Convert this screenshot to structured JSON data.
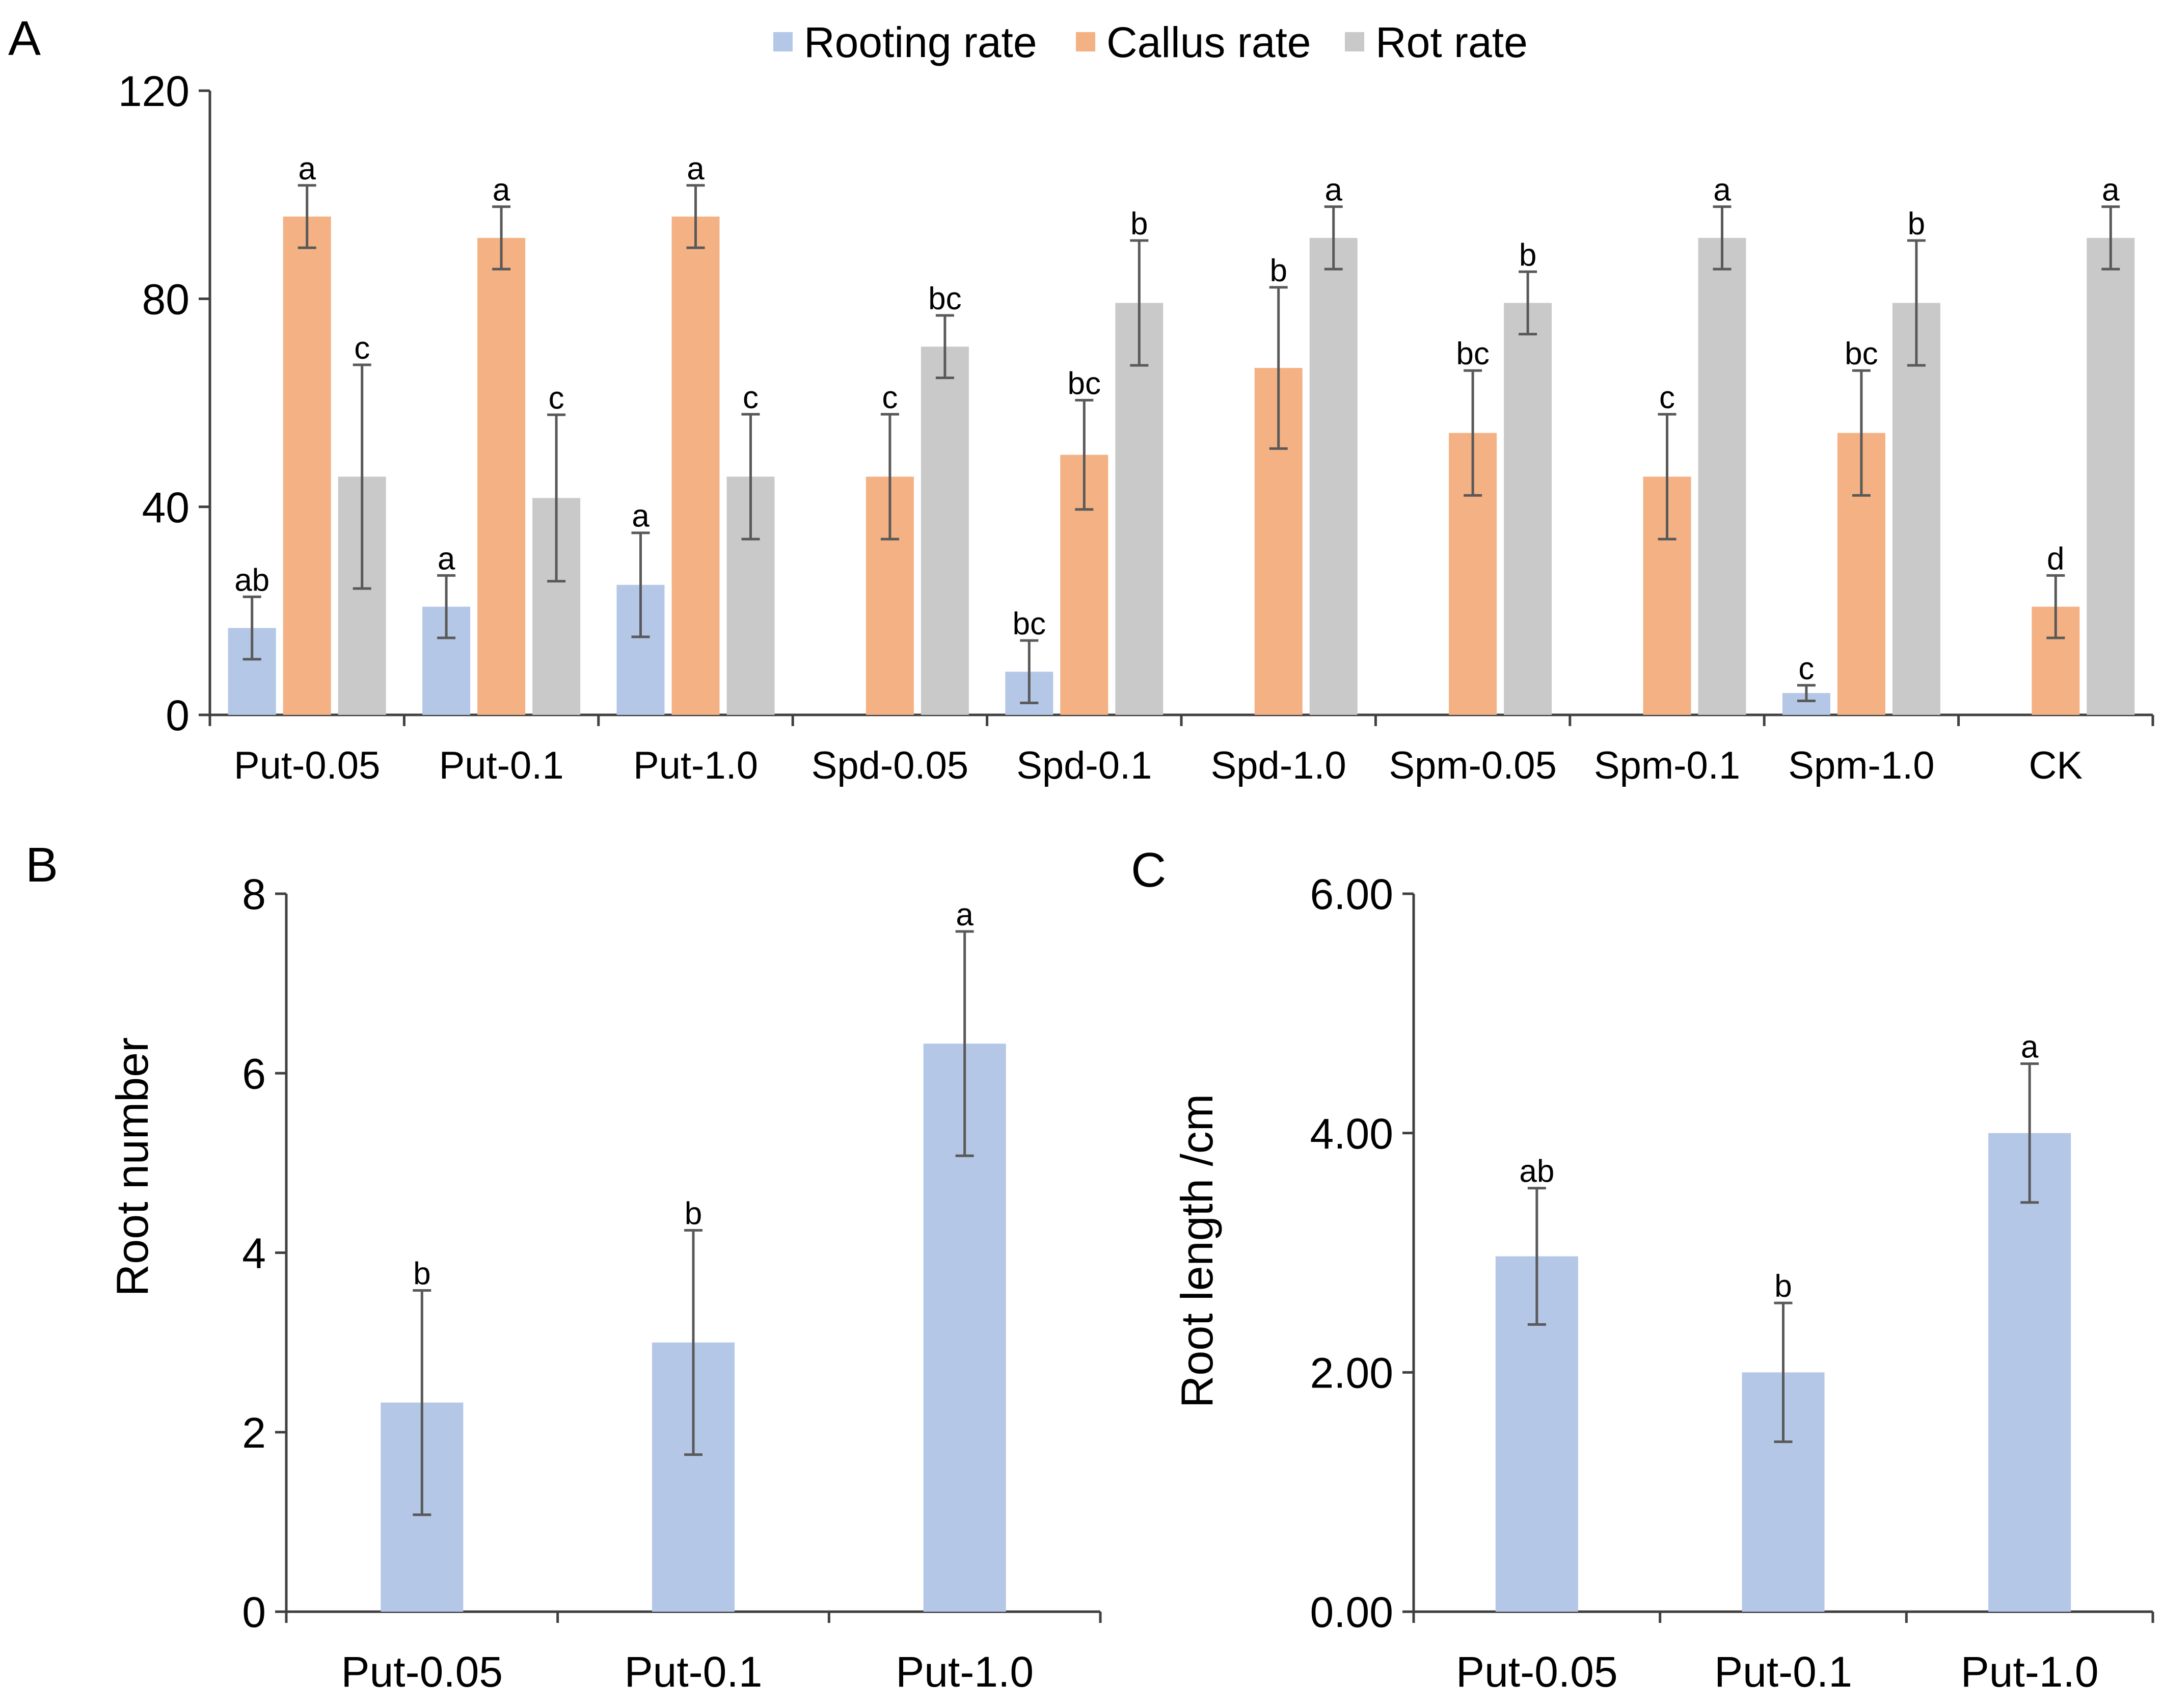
{
  "colors": {
    "rooting": "#b4c7e7",
    "callus": "#f4b183",
    "rot": "#c9c9c9",
    "axis": "#404040",
    "errorbar": "#595959",
    "text": "#000000"
  },
  "chart_data": [
    {
      "panel": "A",
      "type": "bar",
      "categories": [
        "Put-0.05",
        "Put-0.1",
        "Put-1.0",
        "Spd-0.05",
        "Spd-0.1",
        "Spd-1.0",
        "Spm-0.05",
        "Spm-0.1",
        "Spm-1.0",
        "CK"
      ],
      "ylim": [
        0,
        120
      ],
      "yticks": [
        "0",
        "40",
        "80",
        "120"
      ],
      "ytick_values": [
        0,
        40,
        80,
        120
      ],
      "xlabel": "",
      "ylabel": "",
      "legend_position": "top-center",
      "series": [
        {
          "name": "Rooting rate",
          "color_key": "rooting",
          "values": [
            16.7,
            20.8,
            25.0,
            0,
            8.3,
            0,
            0,
            0,
            4.2,
            0
          ],
          "errors": [
            6.0,
            6.0,
            10.0,
            0,
            6.0,
            0,
            0,
            0,
            1.5,
            0
          ],
          "letters": [
            "ab",
            "a",
            "a",
            "",
            "bc",
            "",
            "",
            "",
            "c",
            ""
          ]
        },
        {
          "name": "Callus rate",
          "color_key": "callus",
          "values": [
            95.8,
            91.7,
            95.8,
            45.8,
            50.0,
            66.7,
            54.2,
            45.8,
            54.2,
            20.8
          ],
          "errors": [
            6.0,
            6.0,
            6.0,
            12.0,
            10.5,
            15.5,
            12.0,
            12.0,
            12.0,
            6.0
          ],
          "letters": [
            "a",
            "a",
            "a",
            "c",
            "bc",
            "b",
            "bc",
            "c",
            "bc",
            "d"
          ]
        },
        {
          "name": "Rot rate",
          "color_key": "rot",
          "values": [
            45.8,
            41.7,
            45.8,
            70.8,
            79.2,
            91.7,
            79.2,
            91.7,
            79.2,
            91.7
          ],
          "errors": [
            21.5,
            16.0,
            12.0,
            6.0,
            12.0,
            6.0,
            6.0,
            6.0,
            12.0,
            6.0
          ],
          "letters": [
            "c",
            "c",
            "c",
            "bc",
            "b",
            "a",
            "b",
            "a",
            "b",
            "a"
          ]
        }
      ]
    },
    {
      "panel": "B",
      "type": "bar",
      "categories": [
        "Put-0.05",
        "Put-0.1",
        "Put-1.0"
      ],
      "ylim": [
        0,
        8
      ],
      "yticks": [
        "0",
        "2",
        "4",
        "6",
        "8"
      ],
      "ytick_values": [
        0,
        2,
        4,
        6,
        8
      ],
      "xlabel": "",
      "ylabel": "Root number",
      "series": [
        {
          "name": "Root number",
          "color_key": "rooting",
          "values": [
            2.33,
            3.0,
            6.33
          ],
          "errors": [
            1.25,
            1.25,
            1.25
          ],
          "letters": [
            "b",
            "b",
            "a"
          ]
        }
      ]
    },
    {
      "panel": "C",
      "type": "bar",
      "categories": [
        "Put-0.05",
        "Put-0.1",
        "Put-1.0"
      ],
      "ylim": [
        0,
        6
      ],
      "yticks": [
        "0.00",
        "2.00",
        "4.00",
        "6.00"
      ],
      "ytick_values": [
        0,
        2,
        4,
        6
      ],
      "xlabel": "",
      "ylabel": "Root length /cm",
      "series": [
        {
          "name": "Root length",
          "color_key": "rooting",
          "values": [
            2.97,
            2.0,
            4.0
          ],
          "errors": [
            0.57,
            0.58,
            0.58
          ],
          "letters": [
            "ab",
            "b",
            "a"
          ]
        }
      ]
    }
  ]
}
